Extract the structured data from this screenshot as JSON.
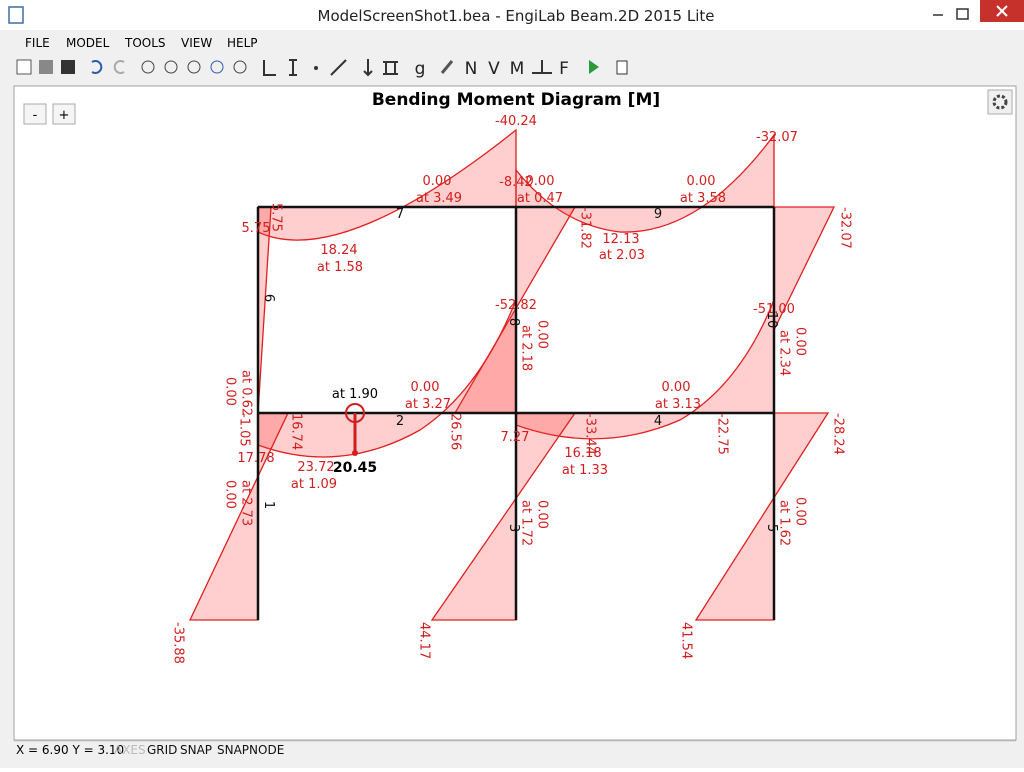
{
  "window": {
    "title": "ModelScreenShot1.bea - EngiLab Beam.2D 2015 Lite"
  },
  "menu": [
    "FILE",
    "MODEL",
    "TOOLS",
    "VIEW",
    "HELP"
  ],
  "toolbar": {
    "letters": [
      "g",
      "N",
      "V",
      "M",
      "F"
    ]
  },
  "zoom_buttons": [
    "-",
    "+"
  ],
  "diagram": {
    "title": "Bending Moment Diagram [M]",
    "labels": [
      "-40.24",
      "0.00",
      "at 3.49",
      "-8.42",
      "0.00",
      "at 0.47",
      "-31.82",
      "0.00",
      "at 3.58",
      "-32.07",
      "-32.07",
      "5.75",
      "5.75",
      "18.24",
      "at 1.58",
      "12.13",
      "at 2.03",
      "-52.82",
      "0.00",
      "at 2.18",
      "-51.00",
      "0.00",
      "at 2.34",
      "0.00",
      "at 0.62",
      "-1.05",
      "0.00",
      "at 3.27",
      "26.56",
      "16.74",
      "0.00",
      "at 3.13",
      "-22.75",
      "-28.24",
      "-33.44",
      "7.27",
      "17.78",
      "23.72",
      "at 1.09",
      "16.18",
      "at 1.33",
      "0.00",
      "at 2.73",
      "0.00",
      "at 1.72",
      "0.00",
      "at 1.62",
      "-35.88",
      "44.17",
      "41.54"
    ],
    "members": [
      "7",
      "9",
      "2",
      "4",
      "6",
      "8",
      "10",
      "1",
      "3",
      "5"
    ],
    "selection": {
      "position": "at 1.90",
      "value": "20.45"
    }
  },
  "status": {
    "coords": "X = 6.90  Y = 3.10",
    "toggles": [
      "AXES",
      "GRID",
      "SNAP",
      "SNAPNODE"
    ]
  }
}
